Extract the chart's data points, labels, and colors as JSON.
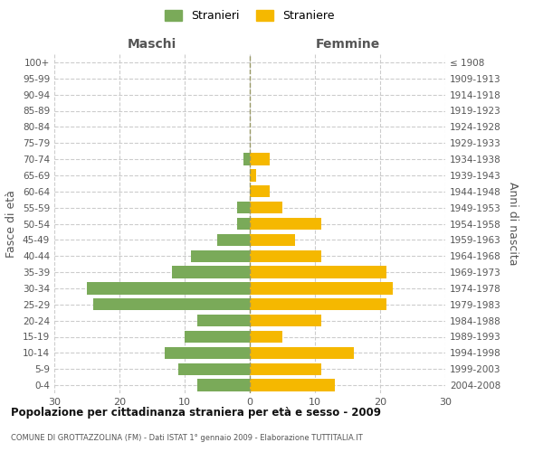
{
  "age_groups": [
    "100+",
    "95-99",
    "90-94",
    "85-89",
    "80-84",
    "75-79",
    "70-74",
    "65-69",
    "60-64",
    "55-59",
    "50-54",
    "45-49",
    "40-44",
    "35-39",
    "30-34",
    "25-29",
    "20-24",
    "15-19",
    "10-14",
    "5-9",
    "0-4"
  ],
  "birth_years": [
    "≤ 1908",
    "1909-1913",
    "1914-1918",
    "1919-1923",
    "1924-1928",
    "1929-1933",
    "1934-1938",
    "1939-1943",
    "1944-1948",
    "1949-1953",
    "1954-1958",
    "1959-1963",
    "1964-1968",
    "1969-1973",
    "1974-1978",
    "1979-1983",
    "1984-1988",
    "1989-1993",
    "1994-1998",
    "1999-2003",
    "2004-2008"
  ],
  "males": [
    0,
    0,
    0,
    0,
    0,
    0,
    1,
    0,
    0,
    2,
    2,
    5,
    9,
    12,
    25,
    24,
    8,
    10,
    13,
    11,
    8
  ],
  "females": [
    0,
    0,
    0,
    0,
    0,
    0,
    3,
    1,
    3,
    5,
    11,
    7,
    11,
    21,
    22,
    21,
    11,
    5,
    16,
    11,
    13
  ],
  "male_color": "#7aaa59",
  "female_color": "#f5b800",
  "background_color": "#ffffff",
  "grid_color": "#cccccc",
  "xlim": 30,
  "title": "Popolazione per cittadinanza straniera per età e sesso - 2009",
  "subtitle": "COMUNE DI GROTTAZZOLINA (FM) - Dati ISTAT 1° gennaio 2009 - Elaborazione TUTTITALIA.IT",
  "ylabel_left": "Fasce di età",
  "ylabel_right": "Anni di nascita",
  "legend_males": "Stranieri",
  "legend_females": "Straniere",
  "header_left": "Maschi",
  "header_right": "Femmine",
  "bar_height": 0.75
}
